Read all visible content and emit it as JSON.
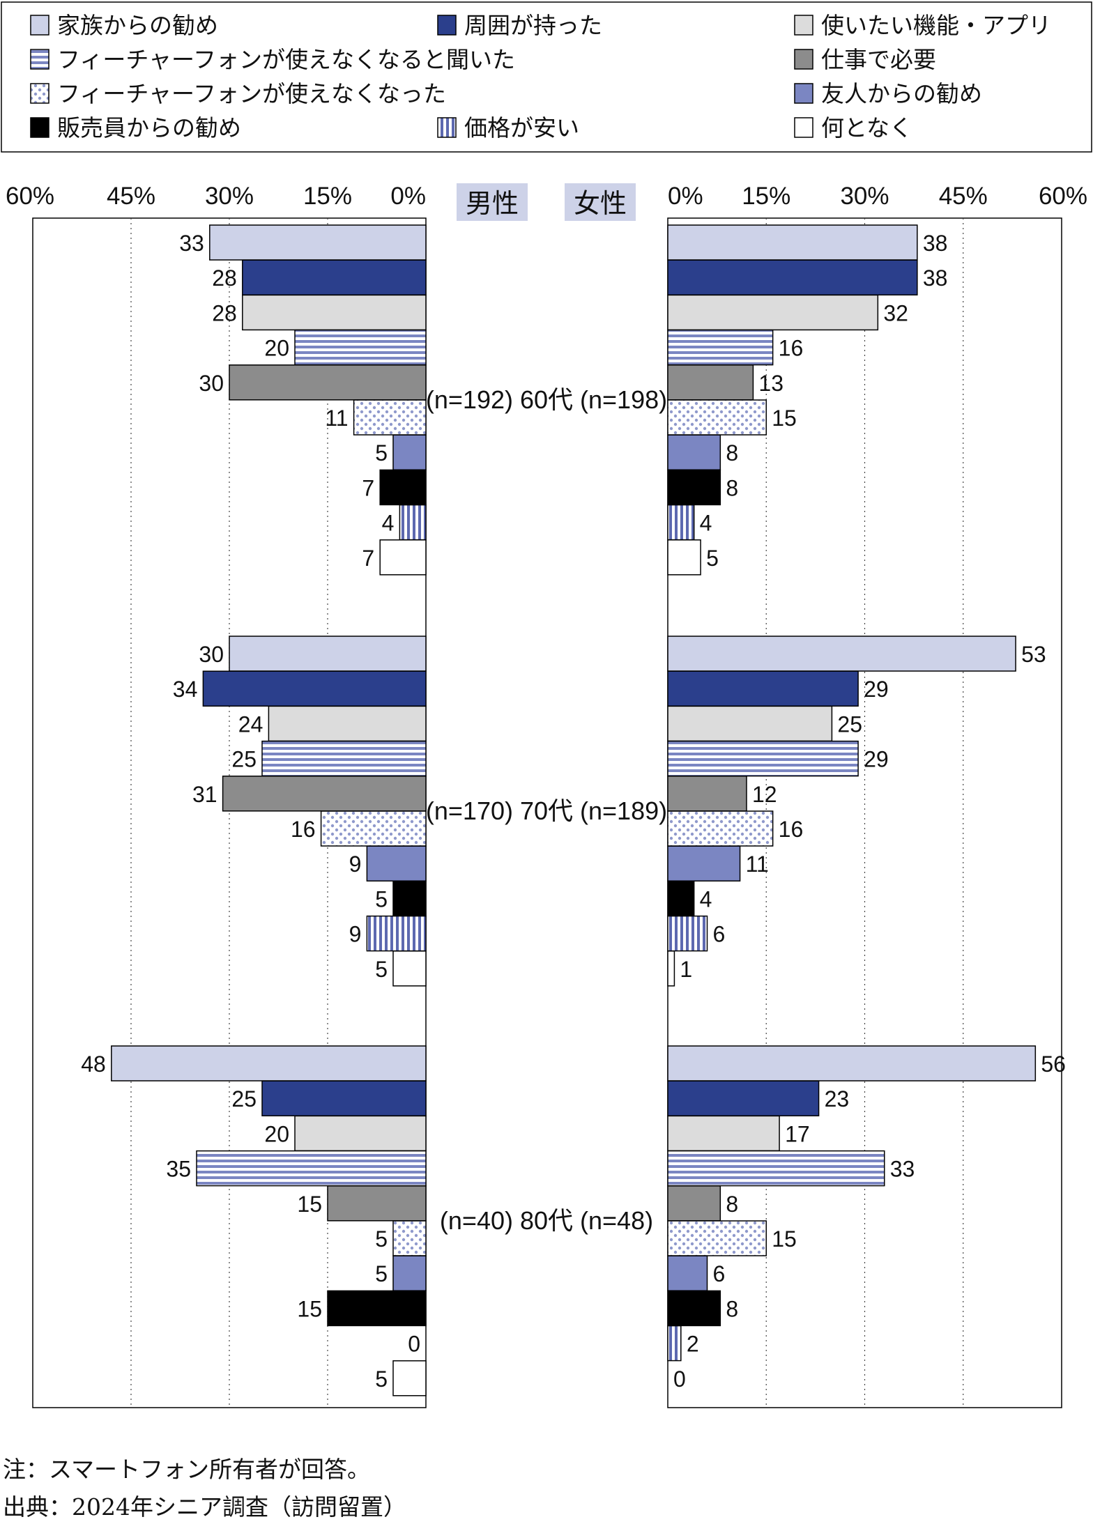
{
  "chart_data": {
    "type": "bar",
    "orientation": "horizontal-butterfly",
    "series": [
      {
        "name": "家族からの勧め",
        "fill": "#cdd2e8",
        "pattern": "solid"
      },
      {
        "name": "周囲が持った",
        "fill": "#2b3f8c",
        "pattern": "solid"
      },
      {
        "name": "使いたい機能・アプリ",
        "fill": "#dcdcdc",
        "pattern": "solid"
      },
      {
        "name": "フィーチャーフォンが使えなくなると聞いた",
        "fill": "#7b86c2",
        "pattern": "horizontal-stripes"
      },
      {
        "name": "仕事で必要",
        "fill": "#8c8c8c",
        "pattern": "solid"
      },
      {
        "name": "フィーチャーフォンが使えなくなった",
        "fill": "#7b86c2",
        "pattern": "dots"
      },
      {
        "name": "友人からの勧め",
        "fill": "#7b86c2",
        "pattern": "solid"
      },
      {
        "name": "販売員からの勧め",
        "fill": "#000000",
        "pattern": "solid"
      },
      {
        "name": "価格が安い",
        "fill": "#5d69b0",
        "pattern": "vertical-stripes"
      },
      {
        "name": "何となく",
        "fill": "#ffffff",
        "pattern": "solid"
      }
    ],
    "groups": [
      {
        "label": "(n=192) 60代 (n=198)",
        "male": [
          33,
          28,
          28,
          20,
          30,
          11,
          5,
          7,
          4,
          7
        ],
        "female": [
          38,
          38,
          32,
          16,
          13,
          15,
          8,
          8,
          4,
          5
        ]
      },
      {
        "label": "(n=170) 70代 (n=189)",
        "male": [
          30,
          34,
          24,
          25,
          31,
          16,
          9,
          5,
          9,
          5
        ],
        "female": [
          53,
          29,
          25,
          29,
          12,
          16,
          11,
          4,
          6,
          1
        ]
      },
      {
        "label": "(n=40) 80代 (n=48)",
        "male": [
          48,
          25,
          20,
          35,
          15,
          5,
          5,
          15,
          0,
          5
        ],
        "female": [
          56,
          23,
          17,
          33,
          8,
          15,
          6,
          8,
          2,
          0
        ]
      }
    ],
    "panels": {
      "male_label": "男性",
      "female_label": "女性"
    },
    "xlim": [
      0,
      60
    ],
    "ticks": [
      0,
      15,
      30,
      45,
      60
    ],
    "tick_labels_male": [
      "60%",
      "45%",
      "30%",
      "15%",
      "0%"
    ],
    "tick_labels_female": [
      "0%",
      "15%",
      "30%",
      "45%",
      "60%"
    ],
    "grid": "vertical-dotted"
  },
  "notes": {
    "note": "注：スマートフォン所有者が回答。",
    "source": "出典：2024年シニア調査（訪問留置）"
  }
}
